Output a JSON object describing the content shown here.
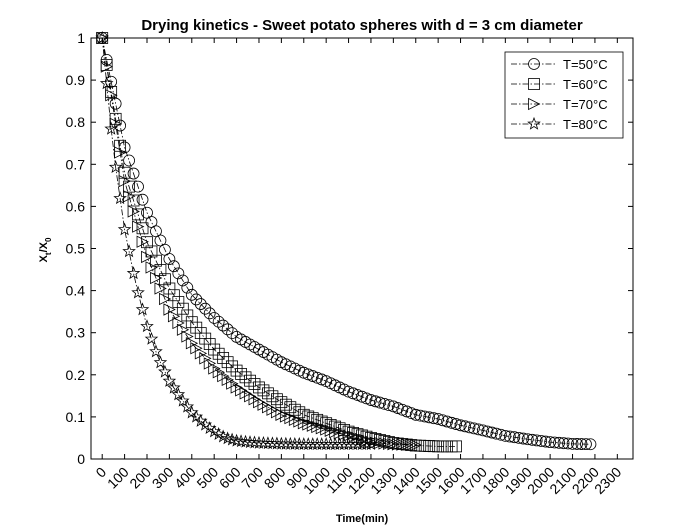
{
  "chart_data": {
    "type": "line",
    "title": "Drying kinetics - Sweet potato spheres with d = 3 cm diameter",
    "xlabel": "Time(min)",
    "ylabel_main": "X",
    "ylabel_sub1": "t",
    "ylabel_slash": "/X",
    "ylabel_sub2": "0",
    "xlim": [
      -50,
      2370
    ],
    "ylim": [
      0,
      1
    ],
    "x_ticks": [
      0,
      100,
      200,
      300,
      400,
      500,
      600,
      700,
      800,
      900,
      1000,
      1100,
      1200,
      1300,
      1400,
      1500,
      1600,
      1700,
      1800,
      1900,
      2000,
      2100,
      2200,
      2300
    ],
    "y_ticks": [
      0,
      0.1,
      0.2,
      0.3,
      0.4,
      0.5,
      0.6,
      0.7,
      0.8,
      0.9,
      1
    ],
    "y_tick_labels": [
      "0",
      "0.1",
      "0.2",
      "0.3",
      "0.4",
      "0.5",
      "0.6",
      "0.7",
      "0.8",
      "0.9",
      "1"
    ],
    "grid": false,
    "legend_position": "top-right",
    "line_style": "dash-dot",
    "series": [
      {
        "name": "T=50°C",
        "marker": "circle",
        "x_start": 0,
        "x_end": 2180,
        "step": 20,
        "x": [
          0,
          100,
          200,
          300,
          400,
          500,
          600,
          700,
          800,
          900,
          1000,
          1100,
          1200,
          1300,
          1400,
          1500,
          1600,
          1700,
          1800,
          1900,
          2000,
          2100,
          2180
        ],
        "y": [
          1.0,
          0.74,
          0.585,
          0.475,
          0.39,
          0.335,
          0.29,
          0.26,
          0.23,
          0.205,
          0.185,
          0.16,
          0.14,
          0.125,
          0.105,
          0.095,
          0.08,
          0.068,
          0.055,
          0.047,
          0.04,
          0.036,
          0.035
        ]
      },
      {
        "name": "T=60°C",
        "marker": "square",
        "x_start": 0,
        "x_end": 1580,
        "step": 20,
        "x": [
          0,
          100,
          200,
          300,
          400,
          500,
          600,
          700,
          800,
          900,
          1000,
          1100,
          1200,
          1300,
          1400,
          1500,
          1580
        ],
        "y": [
          1.0,
          0.68,
          0.515,
          0.405,
          0.325,
          0.26,
          0.21,
          0.17,
          0.135,
          0.105,
          0.085,
          0.065,
          0.05,
          0.038,
          0.032,
          0.03,
          0.03
        ]
      },
      {
        "name": "T=70°C",
        "marker": "triangle-right",
        "x_start": 0,
        "x_end": 1400,
        "step": 20,
        "x": [
          0,
          100,
          200,
          300,
          400,
          500,
          600,
          700,
          800,
          900,
          1000,
          1100,
          1200,
          1300,
          1400
        ],
        "y": [
          1.0,
          0.66,
          0.48,
          0.355,
          0.275,
          0.215,
          0.17,
          0.135,
          0.105,
          0.085,
          0.07,
          0.055,
          0.04,
          0.035,
          0.033
        ]
      },
      {
        "name": "T=80°C",
        "marker": "star",
        "x_start": 0,
        "x_end": 1200,
        "step": 20,
        "x": [
          0,
          50,
          100,
          150,
          200,
          250,
          300,
          350,
          400,
          450,
          500,
          550,
          600,
          650,
          700,
          800,
          900,
          1000,
          1100,
          1200
        ],
        "y": [
          1.0,
          0.73,
          0.545,
          0.415,
          0.315,
          0.24,
          0.185,
          0.145,
          0.11,
          0.085,
          0.065,
          0.05,
          0.043,
          0.04,
          0.038,
          0.036,
          0.035,
          0.035,
          0.035,
          0.035
        ]
      }
    ]
  }
}
